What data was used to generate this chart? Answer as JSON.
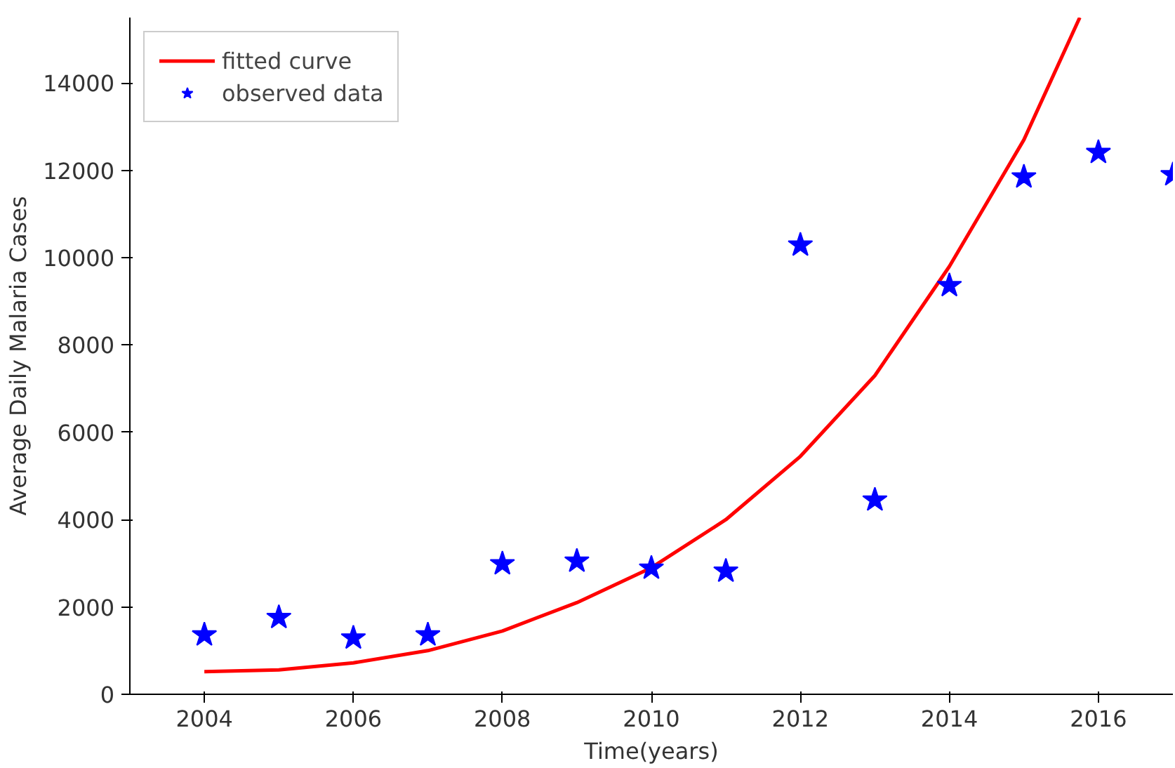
{
  "chart_data": {
    "type": "scatter",
    "xlabel": "Time(years)",
    "ylabel": "Average Daily Malaria Cases",
    "xlim": [
      2003,
      2017
    ],
    "ylim": [
      0,
      15500
    ],
    "xticks": [
      2004,
      2006,
      2008,
      2010,
      2012,
      2014,
      2016
    ],
    "yticks": [
      0,
      2000,
      4000,
      6000,
      8000,
      10000,
      12000,
      14000
    ],
    "grid": false,
    "legend": "top left",
    "series": [
      {
        "name": "fitted curve",
        "type": "line",
        "color": "#ff0000",
        "marker": "none",
        "line_style": "solid",
        "x": [
          2004,
          2005,
          2006,
          2007,
          2008,
          2009,
          2010,
          2011,
          2012,
          2013,
          2014,
          2015,
          2015.75
        ],
        "values": [
          520,
          560,
          720,
          1000,
          1450,
          2100,
          2900,
          4000,
          5450,
          7300,
          9800,
          12700,
          15500
        ]
      },
      {
        "name": "observed data",
        "color": "#0000ff",
        "marker": "star",
        "x": [
          2004,
          2005,
          2006,
          2007,
          2008,
          2009,
          2010,
          2011,
          2012,
          2013,
          2014,
          2015,
          2016,
          2017
        ],
        "values": [
          1360,
          1760,
          1290,
          1360,
          2990,
          3050,
          2890,
          2820,
          10290,
          4450,
          9360,
          11850,
          12410,
          11900
        ]
      }
    ]
  }
}
